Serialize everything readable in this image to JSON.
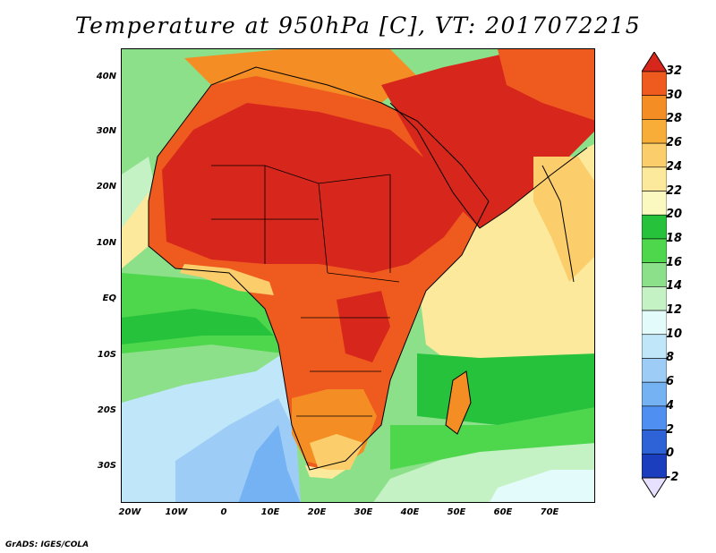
{
  "title": "Temperature at 950hPa [C], VT: 2017072215",
  "credit": "GrADS: IGES/COLA",
  "map": {
    "variable": "Temperature at 950hPa",
    "units": "C",
    "valid_time": "2017072215",
    "projection": "lat-lon",
    "lon_range": [
      -22,
      80
    ],
    "lat_range": [
      -37,
      45
    ],
    "lat_ticks": [
      "40N",
      "30N",
      "20N",
      "10N",
      "EQ",
      "10S",
      "20S",
      "30S"
    ],
    "lon_ticks": [
      "20W",
      "10W",
      "0",
      "10E",
      "20E",
      "30E",
      "40E",
      "50E",
      "60E",
      "70E"
    ]
  },
  "colorbar": {
    "levels": [
      "32",
      "30",
      "28",
      "26",
      "24",
      "22",
      "20",
      "18",
      "16",
      "14",
      "12",
      "10",
      "8",
      "6",
      "4",
      "2",
      "0",
      "-2"
    ],
    "colors": [
      "#d7261b",
      "#ef5a1f",
      "#f58d25",
      "#f7ad38",
      "#fbce6b",
      "#fde99c",
      "#fbf8c0",
      "#26c23b",
      "#4ed64c",
      "#8ce08a",
      "#c4f2c4",
      "#e4fbfb",
      "#c0e6f9",
      "#9dccf6",
      "#74b2f3",
      "#4f8ff1",
      "#2d63d6",
      "#1a3ebd",
      "#132a8c"
    ]
  }
}
